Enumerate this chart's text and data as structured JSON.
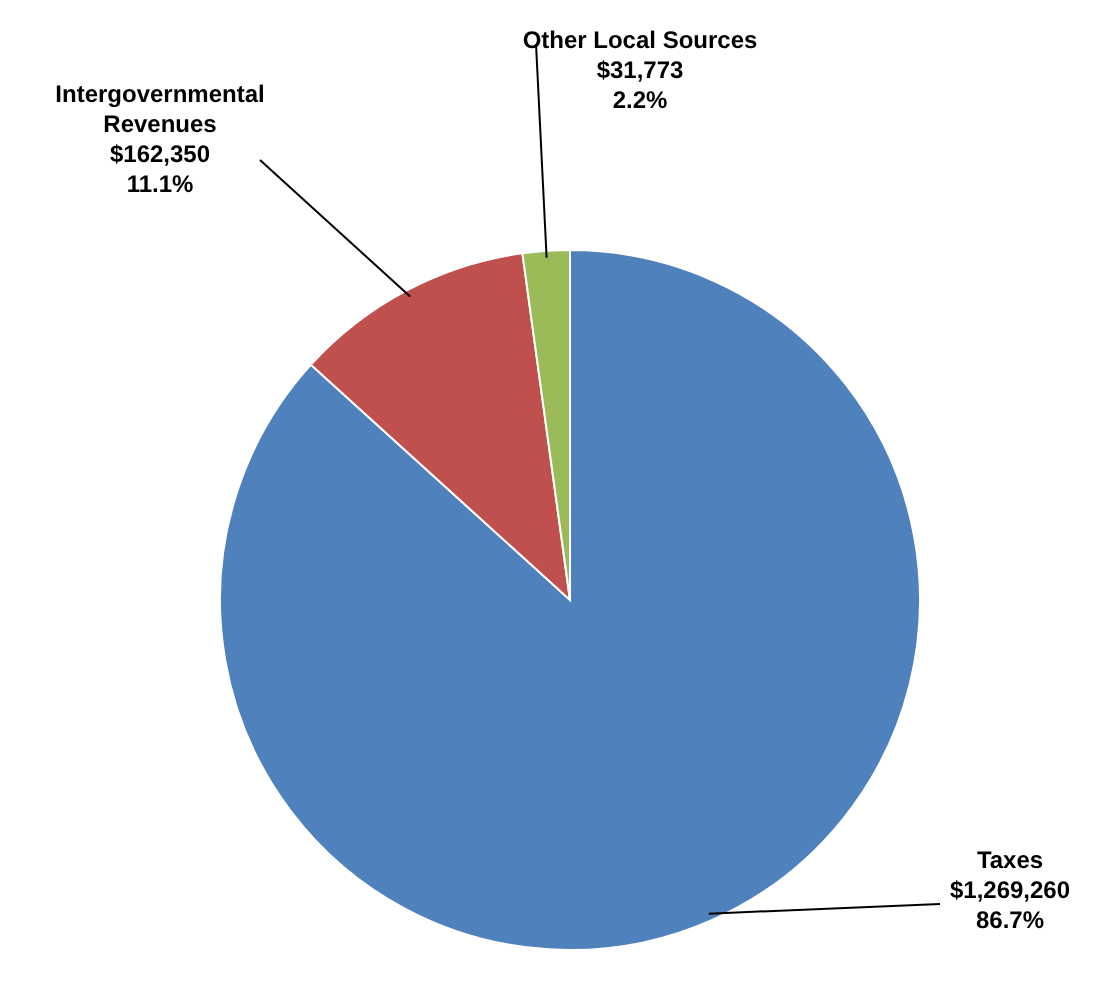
{
  "chart_data": {
    "type": "pie",
    "categories": [
      "Taxes",
      "Intergovernmental Revenues",
      "Other Local Sources"
    ],
    "values": [
      1269260,
      162350,
      31773
    ],
    "value_labels": [
      "$1,269,260\n86.7%",
      "$162,350\n11.1%",
      "$31,773\n2.2%"
    ],
    "colors": [
      "#4f81bd",
      "#c0504d",
      "#9bbb59"
    ]
  }
}
